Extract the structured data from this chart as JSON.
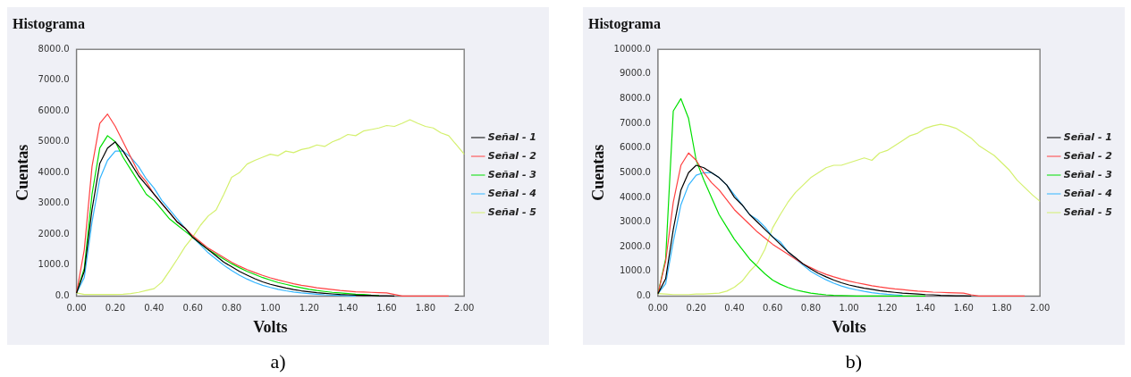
{
  "chart_data": [
    {
      "type": "line",
      "title": "Histograma",
      "xlabel": "Volts",
      "ylabel": "Cuentas",
      "annotations": [
        "a)"
      ],
      "legend": "right",
      "marker": "none",
      "grid": false,
      "x": [
        0,
        0.04,
        0.08,
        0.12,
        0.16,
        0.2,
        0.24,
        0.28,
        0.32,
        0.36,
        0.4,
        0.44,
        0.48,
        0.52,
        0.56,
        0.6,
        0.64,
        0.68,
        0.72,
        0.76,
        0.8,
        0.84,
        0.88,
        0.92,
        0.96,
        1.0,
        1.04,
        1.08,
        1.12,
        1.16,
        1.2,
        1.24,
        1.28,
        1.32,
        1.36,
        1.4,
        1.44,
        1.48,
        1.52,
        1.56,
        1.6,
        1.64,
        1.68,
        1.72,
        1.76,
        1.8,
        1.84,
        1.88,
        1.92,
        1.96,
        2.0
      ],
      "xlim": [
        0,
        2
      ],
      "xticks": [
        {
          "value": 0,
          "label": "0.00"
        },
        {
          "value": 0.2,
          "label": "0.20"
        },
        {
          "value": 0.4,
          "label": "0.40"
        },
        {
          "value": 0.6,
          "label": "0.60"
        },
        {
          "value": 0.8,
          "label": "0.80"
        },
        {
          "value": 1,
          "label": "1.00"
        },
        {
          "value": 1.2,
          "label": "1.20"
        },
        {
          "value": 1.4,
          "label": "1.40"
        },
        {
          "value": 1.6,
          "label": "1.60"
        },
        {
          "value": 1.8,
          "label": "1.80"
        },
        {
          "value": 2,
          "label": "2.00"
        }
      ],
      "ylim": [
        0,
        8000
      ],
      "yticks": [
        {
          "value": 0,
          "label": "0.0"
        },
        {
          "value": 1000,
          "label": "1000.0"
        },
        {
          "value": 2000,
          "label": "2000.0"
        },
        {
          "value": 3000,
          "label": "3000.0"
        },
        {
          "value": 4000,
          "label": "4000.0"
        },
        {
          "value": 5000,
          "label": "5000.0"
        },
        {
          "value": 6000,
          "label": "6000.0"
        },
        {
          "value": 7000,
          "label": "7000.0"
        },
        {
          "value": 8000,
          "label": "8000.0"
        }
      ],
      "series": [
        {
          "name": "Señal - 1",
          "color": "#000000",
          "values": [
            100,
            800,
            2800,
            4300,
            4800,
            5000,
            4700,
            4300,
            3900,
            3600,
            3300,
            3000,
            2700,
            2400,
            2200,
            1900,
            1700,
            1500,
            1300,
            1100,
            950,
            800,
            680,
            560,
            460,
            380,
            320,
            260,
            210,
            170,
            140,
            110,
            90,
            70,
            50,
            40,
            30,
            20,
            20,
            10,
            10,
            0,
            null,
            null,
            null,
            null,
            null,
            null,
            null,
            null,
            null
          ]
        },
        {
          "name": "Señal - 2",
          "color": "#ff4040",
          "values": [
            100,
            1500,
            4200,
            5600,
            5900,
            5500,
            5000,
            4500,
            4000,
            3700,
            3300,
            3000,
            2700,
            2400,
            2200,
            1950,
            1750,
            1550,
            1400,
            1250,
            1100,
            970,
            860,
            760,
            670,
            590,
            520,
            460,
            400,
            350,
            310,
            270,
            240,
            210,
            180,
            160,
            140,
            130,
            120,
            110,
            100,
            50,
            0,
            0,
            0,
            0,
            0,
            0,
            0,
            null,
            null
          ]
        },
        {
          "name": "Señal - 3",
          "color": "#00e000",
          "values": [
            100,
            900,
            3300,
            4800,
            5200,
            5000,
            4500,
            4100,
            3700,
            3300,
            3100,
            2800,
            2500,
            2300,
            2100,
            1900,
            1700,
            1500,
            1350,
            1200,
            1050,
            920,
            800,
            700,
            600,
            520,
            440,
            380,
            320,
            270,
            220,
            180,
            150,
            120,
            100,
            80,
            60,
            50,
            30,
            20,
            null,
            null,
            null,
            null,
            null,
            null,
            null,
            null,
            null,
            null,
            null
          ]
        },
        {
          "name": "Señal - 4",
          "color": "#33b5ff",
          "values": [
            100,
            600,
            2400,
            3800,
            4400,
            4700,
            4700,
            4500,
            4200,
            3800,
            3500,
            3100,
            2800,
            2500,
            2200,
            1900,
            1650,
            1400,
            1200,
            1000,
            830,
            680,
            550,
            440,
            350,
            280,
            220,
            170,
            130,
            100,
            80,
            60,
            40,
            30,
            20,
            10,
            0,
            null,
            null,
            null,
            null,
            null,
            null,
            null,
            null,
            null,
            null,
            null,
            null,
            null,
            null
          ]
        },
        {
          "name": "Señal - 5",
          "color": "#d4f06e",
          "values": [
            100,
            50,
            50,
            50,
            50,
            50,
            60,
            80,
            120,
            180,
            240,
            450,
            820,
            1200,
            1600,
            1920,
            2300,
            2600,
            2790,
            3300,
            3850,
            4000,
            4280,
            4400,
            4500,
            4600,
            4550,
            4700,
            4650,
            4750,
            4800,
            4900,
            4850,
            5000,
            5100,
            5240,
            5200,
            5350,
            5400,
            5450,
            5530,
            5500,
            5600,
            5720,
            5600,
            5500,
            5450,
            5290,
            5200,
            4900,
            4600
          ]
        }
      ]
    },
    {
      "type": "line",
      "title": "Histograma",
      "xlabel": "Volts",
      "ylabel": "Cuentas",
      "annotations": [
        "b)"
      ],
      "legend": "right",
      "marker": "none",
      "grid": false,
      "x": [
        0,
        0.04,
        0.08,
        0.12,
        0.16,
        0.2,
        0.24,
        0.28,
        0.32,
        0.36,
        0.4,
        0.44,
        0.48,
        0.52,
        0.56,
        0.6,
        0.64,
        0.68,
        0.72,
        0.76,
        0.8,
        0.84,
        0.88,
        0.92,
        0.96,
        1.0,
        1.04,
        1.08,
        1.12,
        1.16,
        1.2,
        1.24,
        1.28,
        1.32,
        1.36,
        1.4,
        1.44,
        1.48,
        1.52,
        1.56,
        1.6,
        1.64,
        1.68,
        1.72,
        1.76,
        1.8,
        1.84,
        1.88,
        1.92,
        1.96,
        2.0
      ],
      "xlim": [
        0,
        2
      ],
      "xticks": [
        {
          "value": 0,
          "label": "0.00"
        },
        {
          "value": 0.2,
          "label": "0.20"
        },
        {
          "value": 0.4,
          "label": "0.40"
        },
        {
          "value": 0.6,
          "label": "0.60"
        },
        {
          "value": 0.8,
          "label": "0.80"
        },
        {
          "value": 1,
          "label": "1.00"
        },
        {
          "value": 1.2,
          "label": "1.20"
        },
        {
          "value": 1.4,
          "label": "1.40"
        },
        {
          "value": 1.6,
          "label": "1.60"
        },
        {
          "value": 1.8,
          "label": "1.80"
        },
        {
          "value": 2,
          "label": "2.00"
        }
      ],
      "ylim": [
        0,
        10000
      ],
      "yticks": [
        {
          "value": 0,
          "label": "0.0"
        },
        {
          "value": 1000,
          "label": "1000.0"
        },
        {
          "value": 2000,
          "label": "2000.0"
        },
        {
          "value": 3000,
          "label": "3000.0"
        },
        {
          "value": 4000,
          "label": "4000.0"
        },
        {
          "value": 5000,
          "label": "5000.0"
        },
        {
          "value": 6000,
          "label": "6000.0"
        },
        {
          "value": 7000,
          "label": "7000.0"
        },
        {
          "value": 8000,
          "label": "8000.0"
        },
        {
          "value": 9000,
          "label": "9000.0"
        },
        {
          "value": 10000,
          "label": "10000.0"
        }
      ],
      "series": [
        {
          "name": "Señal - 1",
          "color": "#000000",
          "values": [
            100,
            700,
            2700,
            4300,
            5000,
            5300,
            5200,
            5000,
            4800,
            4500,
            4000,
            3700,
            3300,
            3000,
            2700,
            2400,
            2100,
            1800,
            1550,
            1300,
            1100,
            920,
            780,
            650,
            540,
            450,
            380,
            320,
            270,
            220,
            180,
            150,
            120,
            100,
            80,
            60,
            50,
            30,
            20,
            10,
            10,
            0,
            null,
            null,
            null,
            null,
            null,
            null,
            null,
            null,
            null
          ]
        },
        {
          "name": "Señal - 2",
          "color": "#ff4040",
          "values": [
            100,
            1400,
            3800,
            5300,
            5800,
            5500,
            5000,
            4600,
            4300,
            3900,
            3500,
            3200,
            2900,
            2600,
            2350,
            2100,
            1900,
            1700,
            1500,
            1300,
            1150,
            1000,
            880,
            780,
            690,
            610,
            540,
            480,
            420,
            370,
            330,
            290,
            260,
            230,
            200,
            180,
            160,
            150,
            140,
            130,
            120,
            50,
            0,
            0,
            0,
            0,
            0,
            0,
            0,
            null,
            null
          ]
        },
        {
          "name": "Señal - 3",
          "color": "#00e000",
          "values": [
            100,
            1500,
            7500,
            8000,
            7200,
            5500,
            4700,
            4000,
            3300,
            2800,
            2300,
            1900,
            1500,
            1200,
            900,
            650,
            480,
            350,
            250,
            180,
            120,
            80,
            50,
            30,
            20,
            10,
            0,
            0,
            0,
            0,
            0,
            0,
            0,
            0,
            0,
            0,
            null,
            null,
            null,
            null,
            null,
            null,
            null,
            null,
            null,
            null,
            null,
            null,
            null,
            null,
            null
          ]
        },
        {
          "name": "Señal - 4",
          "color": "#33b5ff",
          "values": [
            100,
            500,
            2200,
            3700,
            4500,
            4900,
            5000,
            5000,
            4800,
            4500,
            4100,
            3700,
            3300,
            3100,
            2800,
            2400,
            2200,
            1800,
            1500,
            1250,
            1000,
            820,
            660,
            520,
            410,
            320,
            250,
            190,
            140,
            100,
            70,
            50,
            30,
            null,
            null,
            null,
            null,
            null,
            null,
            null,
            null,
            null,
            null,
            null,
            null,
            null,
            null,
            null,
            null,
            null,
            null
          ]
        },
        {
          "name": "Señal - 5",
          "color": "#d4f06e",
          "values": [
            100,
            80,
            60,
            60,
            60,
            80,
            80,
            100,
            120,
            200,
            360,
            600,
            1000,
            1320,
            1900,
            2760,
            3300,
            3800,
            4200,
            4500,
            4800,
            5000,
            5200,
            5300,
            5300,
            5400,
            5500,
            5600,
            5500,
            5800,
            5900,
            6100,
            6300,
            6500,
            6600,
            6800,
            6900,
            6960,
            6900,
            6800,
            6600,
            6400,
            6100,
            5900,
            5700,
            5400,
            5100,
            4700,
            4400,
            4100,
            3840
          ]
        }
      ]
    }
  ]
}
